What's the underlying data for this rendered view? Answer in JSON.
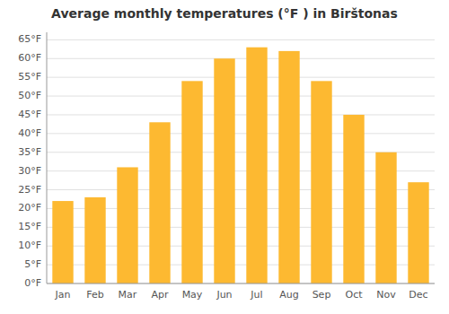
{
  "chart_data": {
    "type": "bar",
    "title": "Average monthly temperatures (°F ) in Birštonas",
    "categories": [
      "Jan",
      "Feb",
      "Mar",
      "Apr",
      "May",
      "Jun",
      "Jul",
      "Aug",
      "Sep",
      "Oct",
      "Nov",
      "Dec"
    ],
    "values": [
      22,
      23,
      31,
      43,
      54,
      60,
      63,
      62,
      54,
      45,
      35,
      27
    ],
    "color": "#FDB931",
    "ylim": [
      0,
      67
    ],
    "yticks": [
      {
        "value": 0,
        "label": "0°F"
      },
      {
        "value": 5,
        "label": "5°F"
      },
      {
        "value": 10,
        "label": "10°F"
      },
      {
        "value": 15,
        "label": "15°F"
      },
      {
        "value": 20,
        "label": "20°F"
      },
      {
        "value": 25,
        "label": "25°F"
      },
      {
        "value": 30,
        "label": "30°F"
      },
      {
        "value": 35,
        "label": "35°F"
      },
      {
        "value": 40,
        "label": "40°F"
      },
      {
        "value": 45,
        "label": "45°F"
      },
      {
        "value": 50,
        "label": "50°F"
      },
      {
        "value": 55,
        "label": "55°F"
      },
      {
        "value": 60,
        "label": "60°F"
      },
      {
        "value": 65,
        "label": "65°F"
      }
    ],
    "grid": true
  }
}
